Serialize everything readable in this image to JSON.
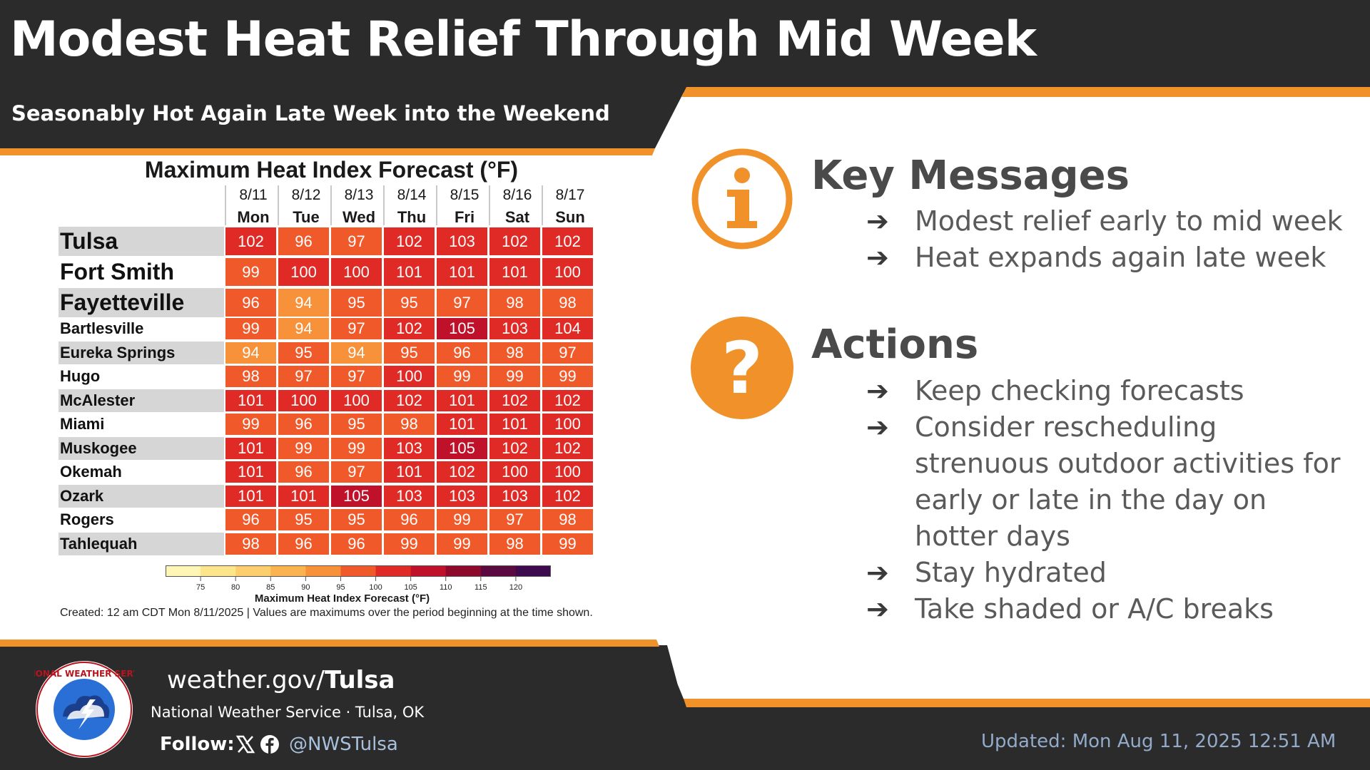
{
  "header": {
    "title": "Modest Heat Relief Through Mid Week",
    "subtitle": "Seasonably Hot Again Late Week into the Weekend"
  },
  "chart_data": {
    "type": "heatmap",
    "title": "Maximum Heat Index Forecast (°F)",
    "dates": [
      "8/11",
      "8/12",
      "8/13",
      "8/14",
      "8/15",
      "8/16",
      "8/17"
    ],
    "days": [
      "Mon",
      "Tue",
      "Wed",
      "Thu",
      "Fri",
      "Sat",
      "Sun"
    ],
    "rows": [
      {
        "city": "Tulsa",
        "values": [
          102,
          96,
          97,
          102,
          103,
          102,
          102
        ]
      },
      {
        "city": "Fort Smith",
        "values": [
          99,
          100,
          100,
          101,
          101,
          101,
          100
        ]
      },
      {
        "city": "Fayetteville",
        "values": [
          96,
          94,
          95,
          95,
          97,
          98,
          98
        ]
      },
      {
        "city": "Bartlesville",
        "values": [
          99,
          94,
          97,
          102,
          105,
          103,
          104
        ]
      },
      {
        "city": "Eureka Springs",
        "values": [
          94,
          95,
          94,
          95,
          96,
          98,
          97
        ]
      },
      {
        "city": "Hugo",
        "values": [
          98,
          97,
          97,
          100,
          99,
          99,
          99
        ]
      },
      {
        "city": "McAlester",
        "values": [
          101,
          100,
          100,
          102,
          101,
          102,
          102
        ]
      },
      {
        "city": "Miami",
        "values": [
          99,
          96,
          95,
          98,
          101,
          101,
          100
        ]
      },
      {
        "city": "Muskogee",
        "values": [
          101,
          99,
          99,
          103,
          105,
          102,
          102
        ]
      },
      {
        "city": "Okemah",
        "values": [
          101,
          96,
          97,
          101,
          102,
          100,
          100
        ]
      },
      {
        "city": "Ozark",
        "values": [
          101,
          101,
          105,
          103,
          103,
          103,
          102
        ]
      },
      {
        "city": "Rogers",
        "values": [
          96,
          95,
          95,
          96,
          99,
          97,
          98
        ]
      },
      {
        "city": "Tahlequah",
        "values": [
          98,
          96,
          96,
          99,
          99,
          98,
          99
        ]
      }
    ],
    "colorbar": {
      "ticks": [
        "75",
        "80",
        "85",
        "90",
        "95",
        "100",
        "105",
        "110",
        "115",
        "120"
      ],
      "colors": [
        "#fdf6b4",
        "#fde58c",
        "#fcce6e",
        "#fbb34f",
        "#f7913a",
        "#f05a2a",
        "#e02a26",
        "#c0112a",
        "#8e0a2c",
        "#5b0a3f",
        "#3c0a4d"
      ],
      "label": "Maximum Heat Index Forecast (°F)"
    },
    "created": "Created: 12 am CDT Mon 8/11/2025  |  Values are maximums over the period beginning at the time shown."
  },
  "key_messages": {
    "title": "Key Messages",
    "icon": "info-icon",
    "items": [
      "Modest relief early to mid week",
      "Heat expands again late week"
    ]
  },
  "actions": {
    "title": "Actions",
    "icon": "question-icon",
    "items": [
      "Keep checking forecasts",
      "Consider rescheduling strenuous outdoor activities for early or late in the day on hotter days",
      "Stay hydrated",
      "Take shaded or A/C breaks"
    ]
  },
  "footer": {
    "site_prefix": "weather.gov/",
    "site_bold": "Tulsa",
    "office": "National Weather Service · Tulsa, OK",
    "follow": "Follow:",
    "handle": "@NWSTulsa",
    "updated": "Updated: Mon Aug 11, 2025 12:51 AM",
    "logo_text": "NATIONAL WEATHER SERVICE"
  },
  "colors": {
    "dark": "#2b2b2b",
    "accent": "#f0912a",
    "white": "#ffffff"
  }
}
